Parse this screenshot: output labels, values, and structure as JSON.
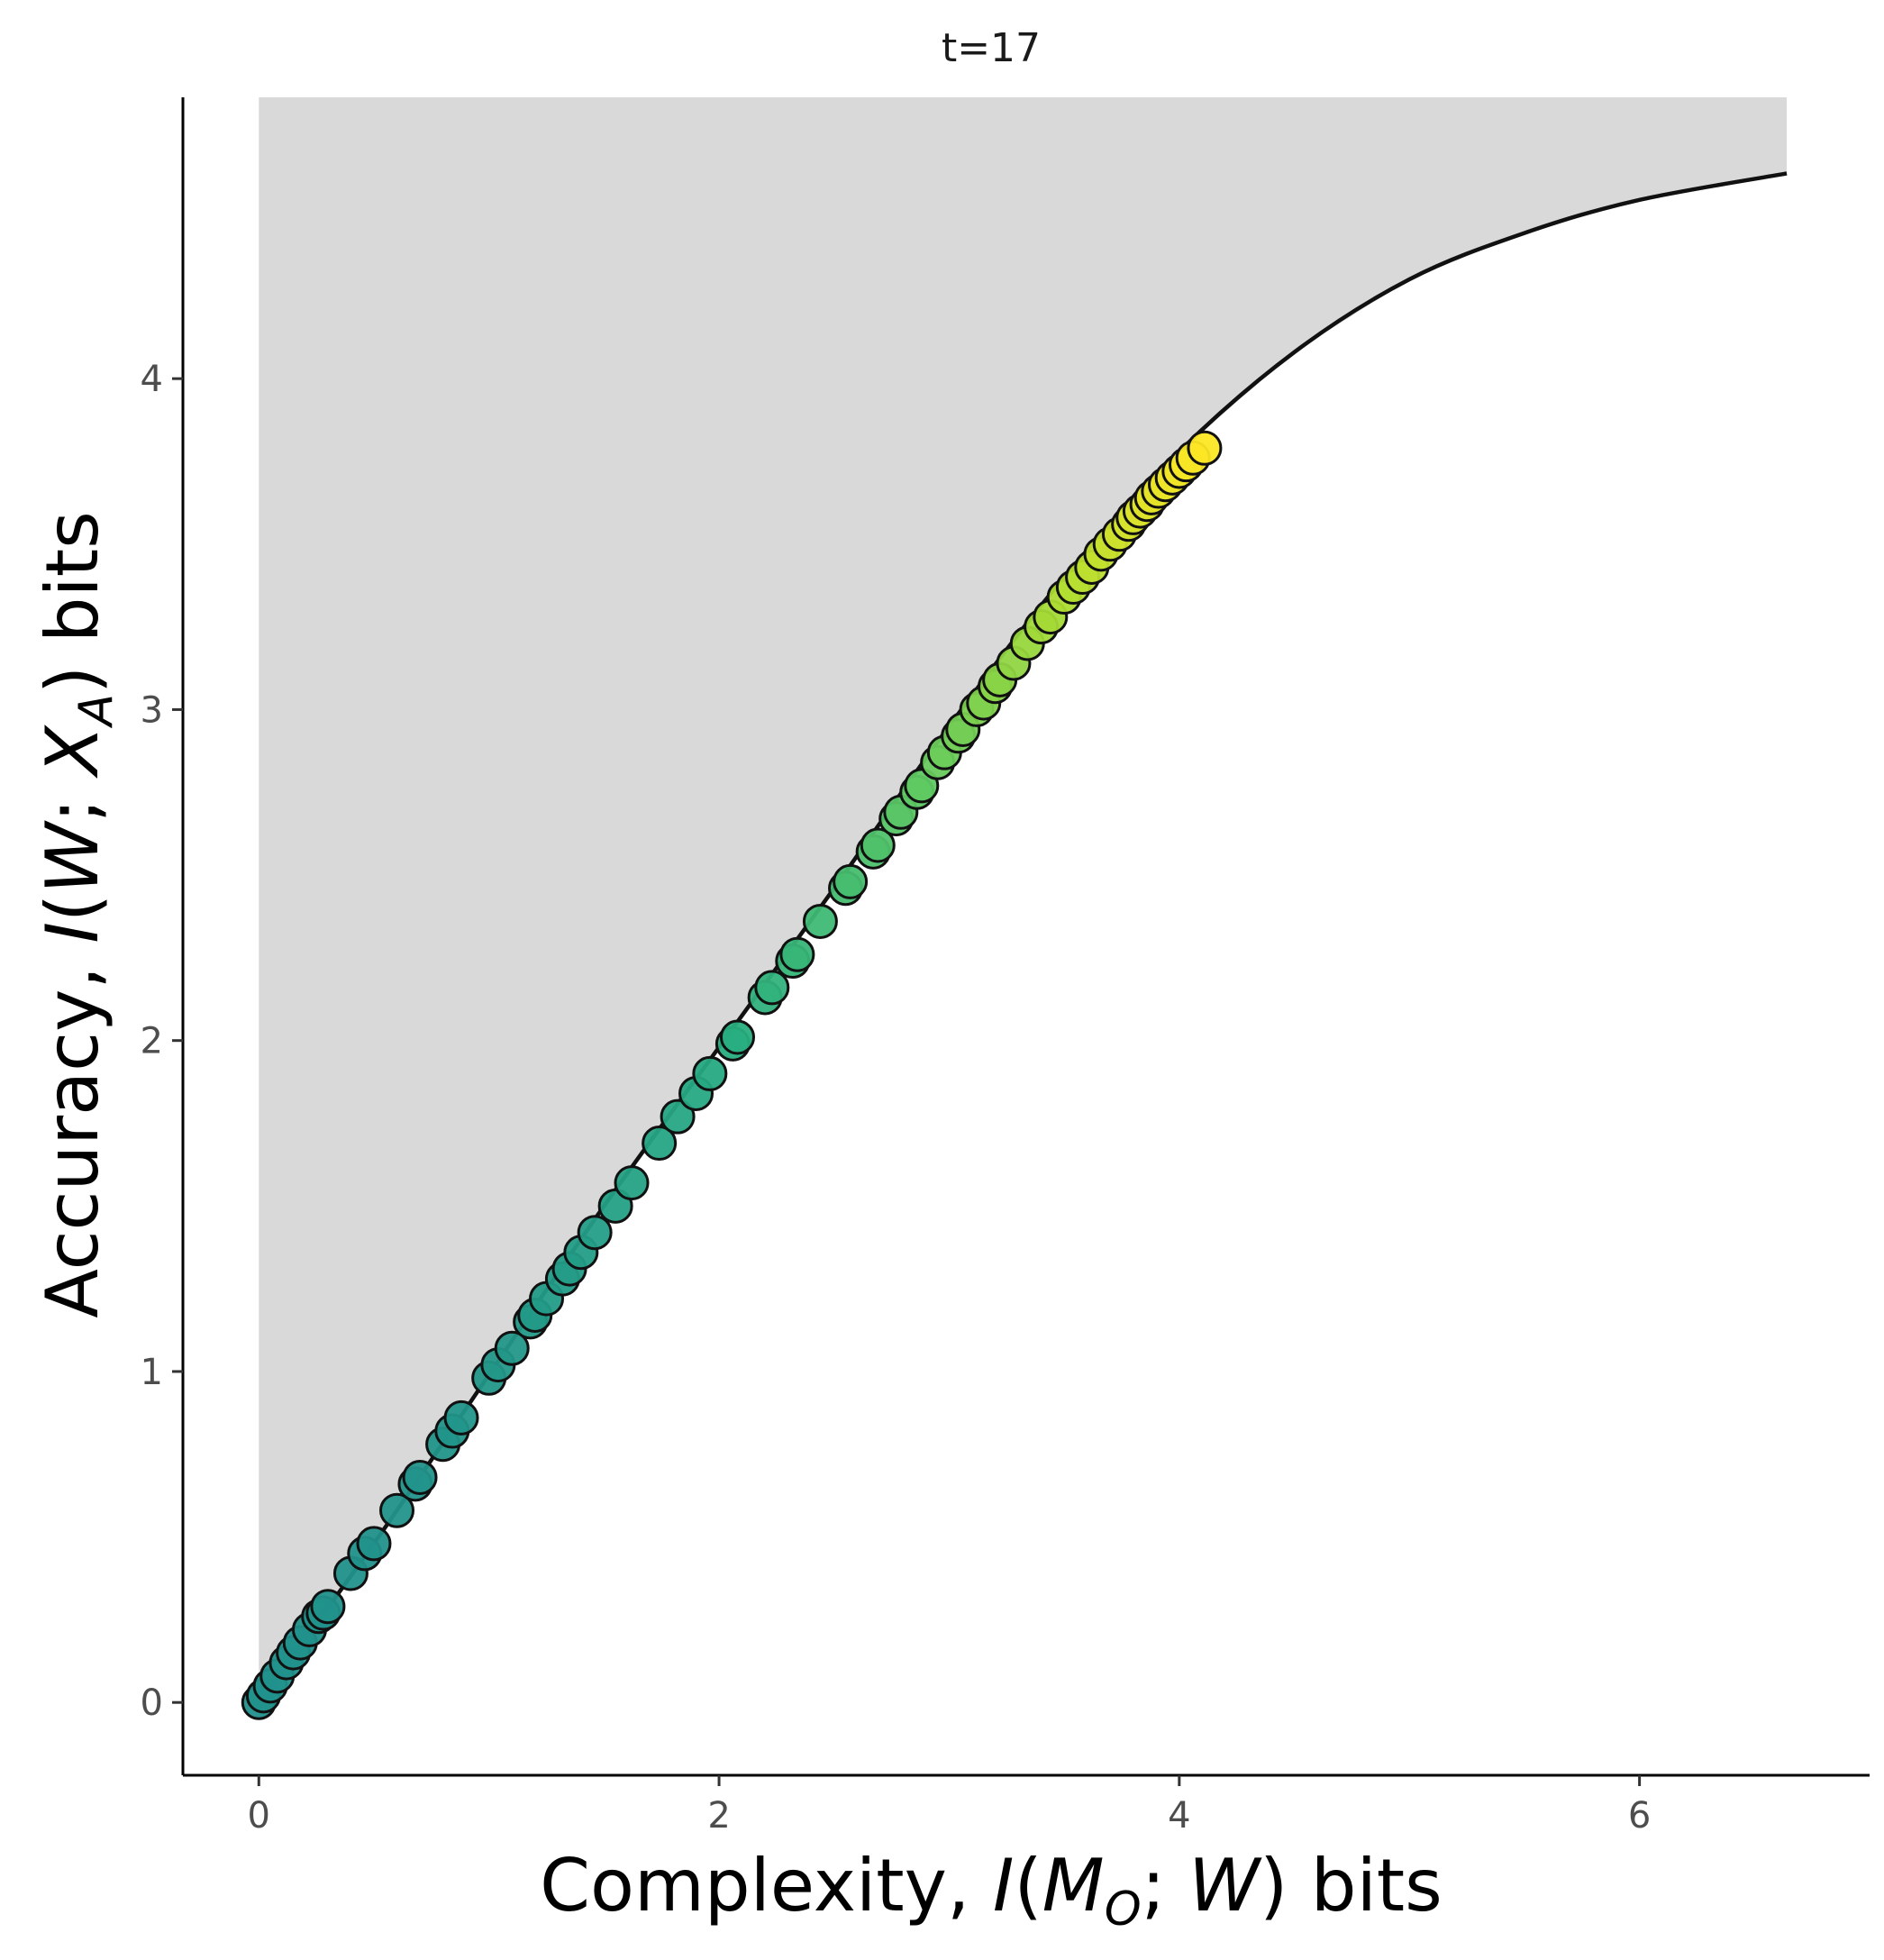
{
  "chart_data": {
    "type": "scatter",
    "facet_title": "t=17",
    "xlabel": {
      "prefix": "Complexity, ",
      "math_I": "I",
      "open": "(",
      "math_M": "M",
      "sub": "O",
      "sep": "; ",
      "math_W": "W",
      "close": ")",
      "suffix": " bits"
    },
    "ylabel": {
      "prefix": "Accuracy, ",
      "math_I": "I",
      "open": "(",
      "math_W": "W",
      "sep": "; ",
      "math_X": "X",
      "sub": "A",
      "close": ")",
      "suffix": " bits"
    },
    "xlim": [
      -0.33,
      7.0
    ],
    "ylim": [
      -0.22,
      4.85
    ],
    "xticks": [
      0,
      2,
      4,
      6
    ],
    "yticks": [
      0,
      1,
      2,
      3,
      4
    ],
    "xtick_labels": [
      "0",
      "2",
      "4",
      "6"
    ],
    "ytick_labels": [
      "0",
      "1",
      "2",
      "3",
      "4"
    ],
    "grid": false,
    "shaded_region": {
      "description": "feasible region above bound",
      "fill": "#d9d9d9",
      "x_range": [
        0,
        6.64
      ],
      "y_top": 4.85
    },
    "bound_curve": {
      "x": [
        0,
        0.5,
        1.0,
        1.5,
        2.0,
        2.5,
        3.0,
        3.5,
        4.0,
        4.5,
        5.0,
        5.5,
        6.0,
        6.64
      ],
      "y": [
        0,
        0.48,
        0.99,
        1.5,
        1.98,
        2.46,
        2.95,
        3.4,
        3.78,
        4.08,
        4.3,
        4.44,
        4.54,
        4.62
      ],
      "color": "#111111"
    },
    "points": {
      "x": [
        0,
        0.02,
        0.05,
        0.08,
        0.12,
        0.15,
        0.18,
        0.22,
        0.26,
        0.28,
        0.3,
        0.4,
        0.46,
        0.5,
        0.6,
        0.68,
        0.7,
        0.8,
        0.84,
        0.88,
        1.0,
        1.04,
        1.1,
        1.18,
        1.2,
        1.25,
        1.32,
        1.35,
        1.4,
        1.46,
        1.55,
        1.62,
        1.74,
        1.82,
        1.9,
        1.96,
        2.06,
        2.08,
        2.2,
        2.23,
        2.32,
        2.34,
        2.44,
        2.55,
        2.57,
        2.67,
        2.69,
        2.77,
        2.79,
        2.86,
        2.88,
        2.95,
        2.98,
        3.04,
        3.06,
        3.12,
        3.15,
        3.2,
        3.22,
        3.28,
        3.34,
        3.4,
        3.44,
        3.5,
        3.54,
        3.58,
        3.62,
        3.66,
        3.7,
        3.74,
        3.78,
        3.8,
        3.83,
        3.86,
        3.88,
        3.91,
        3.94,
        3.97,
        4.0,
        4.03,
        4.06,
        4.11
      ],
      "y": [
        0.0,
        0.02,
        0.05,
        0.08,
        0.12,
        0.15,
        0.18,
        0.22,
        0.26,
        0.27,
        0.29,
        0.39,
        0.45,
        0.48,
        0.58,
        0.66,
        0.68,
        0.78,
        0.82,
        0.86,
        0.98,
        1.02,
        1.07,
        1.15,
        1.17,
        1.22,
        1.28,
        1.31,
        1.36,
        1.42,
        1.5,
        1.57,
        1.69,
        1.77,
        1.84,
        1.9,
        1.99,
        2.01,
        2.13,
        2.16,
        2.24,
        2.26,
        2.36,
        2.46,
        2.48,
        2.57,
        2.59,
        2.67,
        2.69,
        2.75,
        2.77,
        2.84,
        2.87,
        2.92,
        2.94,
        3.0,
        3.02,
        3.07,
        3.09,
        3.14,
        3.2,
        3.25,
        3.28,
        3.34,
        3.37,
        3.4,
        3.43,
        3.47,
        3.5,
        3.53,
        3.56,
        3.58,
        3.6,
        3.62,
        3.64,
        3.66,
        3.68,
        3.7,
        3.72,
        3.74,
        3.76,
        3.79
      ],
      "color_scale": "viridis",
      "palette": [
        "#440154",
        "#3b528b",
        "#21908c",
        "#27ad81",
        "#5dc863",
        "#aadc32",
        "#fde725"
      ],
      "stroke": "#111111"
    }
  }
}
